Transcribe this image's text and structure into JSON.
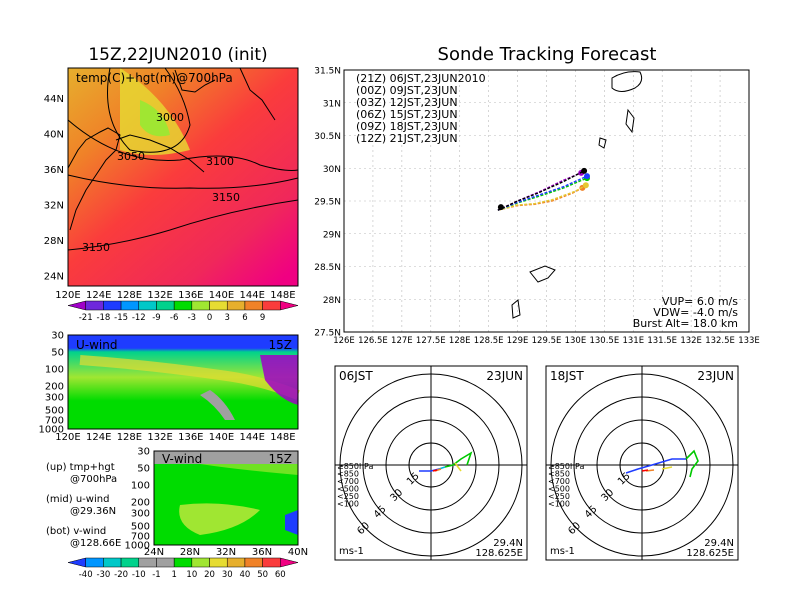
{
  "left": {
    "title": "15Z,22JUN2010 (init)",
    "map_label": "temp(C)+hgt(m)@700hPa",
    "lat_ticks": [
      "44N",
      "40N",
      "36N",
      "32N",
      "28N",
      "24N"
    ],
    "lon_ticks": [
      "120E",
      "124E",
      "128E",
      "132E",
      "136E",
      "140E",
      "144E",
      "148E"
    ],
    "contour_labels": [
      "3000",
      "3050",
      "3100",
      "3150",
      "3150"
    ],
    "temp_colorbar": {
      "labels": [
        "-21",
        "-18",
        "-15",
        "-12",
        "-9",
        "-6",
        "-3",
        "0",
        "3",
        "6",
        "9"
      ],
      "colors": [
        "#a000c8",
        "#6e28dc",
        "#1e3cff",
        "#0096ff",
        "#00c8c8",
        "#00d28c",
        "#00dc00",
        "#a0e632",
        "#e6dc32",
        "#e6af2d",
        "#f08228",
        "#fa3c3c",
        "#f00082"
      ]
    },
    "uwind": {
      "label": "U-wind",
      "time": "15Z",
      "p_ticks": [
        "30",
        "50",
        "100",
        "200",
        "300",
        "500",
        "700",
        "1000"
      ],
      "lon_ticks": [
        "120E",
        "124E",
        "128E",
        "132E",
        "136E",
        "140E",
        "144E",
        "148E"
      ]
    },
    "vwind": {
      "label": "V-wind",
      "time": "15Z",
      "p_ticks": [
        "30",
        "50",
        "100",
        "200",
        "300",
        "500",
        "700",
        "1000"
      ],
      "lat_ticks": [
        "24N",
        "28N",
        "32N",
        "36N",
        "40N"
      ]
    },
    "legend_notes": [
      {
        "line1": "(up) tmp+hgt",
        "line2": "@700hPa"
      },
      {
        "line1": "(mid) u-wind",
        "line2": "@29.36N"
      },
      {
        "line1": "(bot) v-wind",
        "line2": "@128.66E"
      }
    ],
    "wind_colorbar": {
      "labels": [
        "-40",
        "-30",
        "-20",
        "-10",
        "-1",
        "1",
        "10",
        "20",
        "30",
        "40",
        "50",
        "60"
      ],
      "colors": [
        "#1e3cff",
        "#0096ff",
        "#00c8c8",
        "#00d28c",
        "#a0a0a0",
        "#a0a0a0",
        "#00dc00",
        "#a0e632",
        "#e6dc32",
        "#e6af2d",
        "#f08228",
        "#fa3c3c",
        "#f00082"
      ]
    }
  },
  "track": {
    "title": "Sonde Tracking Forecast",
    "lat_ticks": [
      "31.5N",
      "31N",
      "30.5N",
      "30N",
      "29.5N",
      "29N",
      "28.5N",
      "28N",
      "27.5N"
    ],
    "lon_ticks": [
      "126E",
      "126.5E",
      "127E",
      "127.5E",
      "128E",
      "128.5E",
      "129E",
      "129.5E",
      "130E",
      "130.5E",
      "131E",
      "131.5E",
      "132E",
      "132.5E",
      "133E"
    ],
    "legend": [
      {
        "text": "(21Z) 06JST,23JUN2010",
        "color": "#000000"
      },
      {
        "text": "(00Z) 09JST,23JUN",
        "color": "#a000c8"
      },
      {
        "text": "(03Z) 12JST,23JUN",
        "color": "#1e3cff"
      },
      {
        "text": "(06Z) 15JST,23JUN",
        "color": "#00c800"
      },
      {
        "text": "(09Z) 18JST,23JUN",
        "color": "#e6c832"
      },
      {
        "text": "(12Z) 21JST,23JUN",
        "color": "#f08228"
      }
    ],
    "params": [
      "VUP= 6.0 m/s",
      "VDW= -4.0 m/s",
      "Burst Alt= 18.0 km"
    ]
  },
  "hodographs": [
    {
      "time": "06JST",
      "date": "23JUN",
      "ring_labels": [
        "15",
        "30",
        "45",
        "60"
      ],
      "lat": "29.4N",
      "lon": "128.625E",
      "units": "ms-1"
    },
    {
      "time": "18JST",
      "date": "23JUN",
      "ring_labels": [
        "15",
        "30",
        "45",
        "60"
      ],
      "lat": "29.4N",
      "lon": "128.625E",
      "units": "ms-1"
    }
  ],
  "hodo_legend": [
    {
      "text": "≥850hPa",
      "color": "#fa0000"
    },
    {
      "text": "<850",
      "color": "#f08228"
    },
    {
      "text": "<700",
      "color": "#e6dc32"
    },
    {
      "text": "<500",
      "color": "#00c800"
    },
    {
      "text": "<250",
      "color": "#00b4dc"
    },
    {
      "text": "<100",
      "color": "#1e3cff"
    }
  ],
  "chart_data": [
    {
      "type": "heatmap",
      "title": "15Z,22JUN2010 (init)",
      "label": "temp(C)+hgt(m)@700hPa",
      "xlim": [
        120,
        150
      ],
      "ylim": [
        22,
        48
      ],
      "contours_m": [
        3000,
        3050,
        3100,
        3150
      ],
      "colorbar": [
        -21,
        -18,
        -15,
        -12,
        -9,
        -6,
        -3,
        0,
        3,
        6,
        9
      ]
    },
    {
      "type": "line",
      "title": "Sonde Tracking Forecast",
      "xlim": [
        126,
        133
      ],
      "ylim": [
        27.5,
        31.5
      ],
      "launch": {
        "x": 128.66,
        "y": 29.36
      },
      "series": [
        {
          "name": "(21Z) 06JST,23JUN2010",
          "color": "#000000",
          "points": [
            [
              128.66,
              29.36
            ],
            [
              129.0,
              29.5
            ],
            [
              129.35,
              29.62
            ],
            [
              129.8,
              29.8
            ],
            [
              130.15,
              29.96
            ]
          ]
        },
        {
          "name": "(00Z) 09JST,23JUN",
          "color": "#a000c8",
          "points": [
            [
              128.66,
              29.36
            ],
            [
              129.0,
              29.5
            ],
            [
              129.4,
              29.65
            ],
            [
              129.8,
              29.82
            ],
            [
              130.1,
              29.93
            ]
          ]
        },
        {
          "name": "(03Z) 12JST,23JUN",
          "color": "#1e3cff",
          "points": [
            [
              128.66,
              29.36
            ],
            [
              129.0,
              29.48
            ],
            [
              129.4,
              29.6
            ],
            [
              129.8,
              29.72
            ],
            [
              130.2,
              29.88
            ]
          ]
        },
        {
          "name": "(06Z) 15JST,23JUN",
          "color": "#00c800",
          "points": [
            [
              128.66,
              29.36
            ],
            [
              129.0,
              29.47
            ],
            [
              129.4,
              29.58
            ],
            [
              129.8,
              29.7
            ],
            [
              130.2,
              29.85
            ]
          ]
        },
        {
          "name": "(09Z) 18JST,23JUN",
          "color": "#e6c832",
          "points": [
            [
              128.66,
              29.36
            ],
            [
              129.0,
              29.44
            ],
            [
              129.3,
              29.46
            ],
            [
              129.6,
              29.52
            ],
            [
              130.0,
              29.65
            ],
            [
              130.18,
              29.74
            ]
          ]
        },
        {
          "name": "(12Z) 21JST,23JUN",
          "color": "#f08228",
          "points": [
            [
              128.66,
              29.36
            ],
            [
              129.0,
              29.43
            ],
            [
              129.3,
              29.45
            ],
            [
              129.6,
              29.5
            ],
            [
              129.95,
              29.62
            ],
            [
              130.12,
              29.7
            ]
          ]
        }
      ]
    }
  ]
}
